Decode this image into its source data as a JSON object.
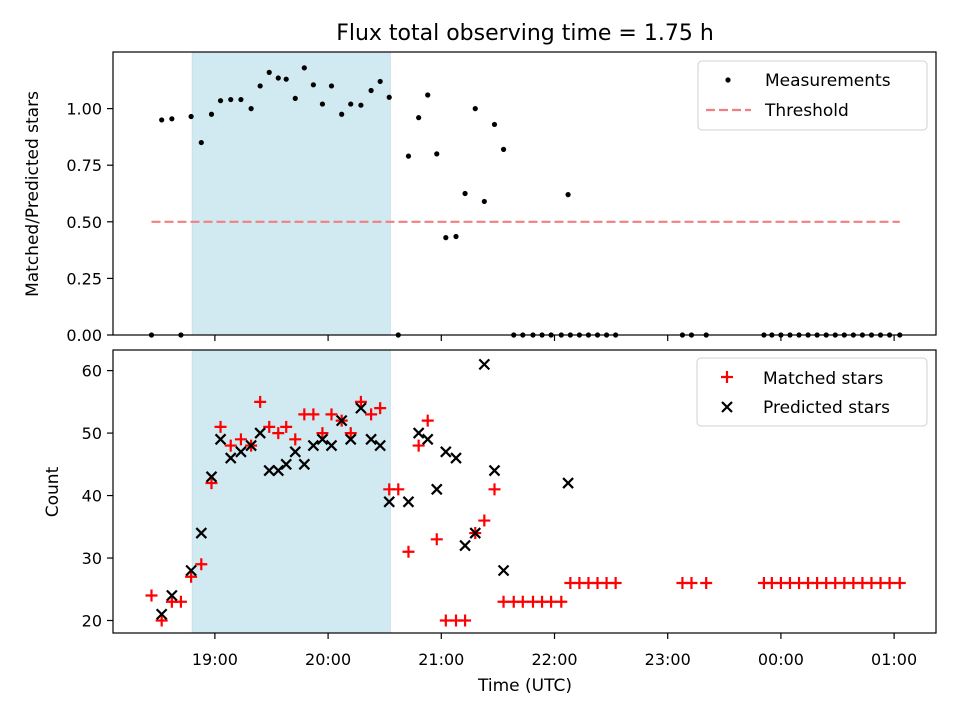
{
  "chart_data": {
    "title": "Flux total observing time = 1.75 h",
    "xlabel": "Time (UTC)",
    "x_unit": "hours since 18:00 UTC",
    "xlim": [
      0.1,
      7.37
    ],
    "xticks": [
      {
        "h": 1,
        "label": "19:00"
      },
      {
        "h": 2,
        "label": "20:00"
      },
      {
        "h": 3,
        "label": "21:00"
      },
      {
        "h": 4,
        "label": "22:00"
      },
      {
        "h": 5,
        "label": "23:00"
      },
      {
        "h": 6,
        "label": "00:00"
      },
      {
        "h": 7,
        "label": "01:00"
      }
    ],
    "shaded_interval": [
      0.8,
      2.55
    ],
    "top": {
      "type": "scatter",
      "ylabel": "Matched/Predicted stars",
      "ylim": [
        0,
        1.25
      ],
      "yticks": [
        "0.00",
        "0.25",
        "0.50",
        "0.75",
        "1.00"
      ],
      "legend": [
        "Measurements",
        "Threshold"
      ],
      "threshold": {
        "y": 0.5,
        "x": [
          0.44,
          7.05
        ]
      },
      "measurements": [
        [
          0.44,
          0.0
        ],
        [
          0.53,
          0.95
        ],
        [
          0.62,
          0.955
        ],
        [
          0.7,
          0.0
        ],
        [
          0.79,
          0.965
        ],
        [
          0.88,
          0.85
        ],
        [
          0.97,
          0.975
        ],
        [
          1.05,
          1.035
        ],
        [
          1.14,
          1.04
        ],
        [
          1.23,
          1.04
        ],
        [
          1.32,
          1.0
        ],
        [
          1.4,
          1.1
        ],
        [
          1.48,
          1.16
        ],
        [
          1.56,
          1.135
        ],
        [
          1.63,
          1.13
        ],
        [
          1.71,
          1.045
        ],
        [
          1.79,
          1.18
        ],
        [
          1.87,
          1.105
        ],
        [
          1.95,
          1.02
        ],
        [
          2.03,
          1.1
        ],
        [
          2.12,
          0.975
        ],
        [
          2.2,
          1.02
        ],
        [
          2.29,
          1.015
        ],
        [
          2.38,
          1.08
        ],
        [
          2.46,
          1.12
        ],
        [
          2.54,
          1.05
        ],
        [
          2.62,
          0.0
        ],
        [
          2.71,
          0.79
        ],
        [
          2.8,
          0.96
        ],
        [
          2.88,
          1.06
        ],
        [
          2.96,
          0.8
        ],
        [
          3.04,
          0.43
        ],
        [
          3.13,
          0.435
        ],
        [
          3.21,
          0.625
        ],
        [
          3.3,
          1.0
        ],
        [
          3.38,
          0.59
        ],
        [
          3.47,
          0.93
        ],
        [
          3.55,
          0.82
        ],
        [
          3.64,
          0.0
        ],
        [
          3.72,
          0.0
        ],
        [
          3.81,
          0.0
        ],
        [
          3.89,
          0.0
        ],
        [
          3.97,
          0.0
        ],
        [
          4.06,
          0.0
        ],
        [
          4.12,
          0.62
        ],
        [
          4.14,
          0.0
        ],
        [
          4.22,
          0.0
        ],
        [
          4.3,
          0.0
        ],
        [
          4.38,
          0.0
        ],
        [
          4.46,
          0.0
        ],
        [
          4.54,
          0.0
        ],
        [
          5.13,
          0.0
        ],
        [
          5.21,
          0.0
        ],
        [
          5.34,
          0.0
        ],
        [
          5.85,
          0.0
        ],
        [
          5.92,
          0.0
        ],
        [
          6.0,
          0.0
        ],
        [
          6.08,
          0.0
        ],
        [
          6.16,
          0.0
        ],
        [
          6.24,
          0.0
        ],
        [
          6.32,
          0.0
        ],
        [
          6.4,
          0.0
        ],
        [
          6.48,
          0.0
        ],
        [
          6.56,
          0.0
        ],
        [
          6.64,
          0.0
        ],
        [
          6.72,
          0.0
        ],
        [
          6.8,
          0.0
        ],
        [
          6.88,
          0.0
        ],
        [
          6.96,
          0.0
        ],
        [
          7.05,
          0.0
        ]
      ]
    },
    "bottom": {
      "type": "scatter",
      "ylabel": "Count",
      "ylim": [
        18,
        63.3
      ],
      "yticks": [
        20,
        30,
        40,
        50,
        60
      ],
      "legend": [
        "Matched stars",
        "Predicted stars"
      ],
      "matched": [
        [
          0.44,
          24
        ],
        [
          0.53,
          20
        ],
        [
          0.62,
          23
        ],
        [
          0.7,
          23
        ],
        [
          0.79,
          27
        ],
        [
          0.88,
          29
        ],
        [
          0.97,
          42
        ],
        [
          1.05,
          51
        ],
        [
          1.14,
          48
        ],
        [
          1.23,
          49
        ],
        [
          1.32,
          48
        ],
        [
          1.4,
          55
        ],
        [
          1.48,
          51
        ],
        [
          1.56,
          50
        ],
        [
          1.63,
          51
        ],
        [
          1.71,
          49
        ],
        [
          1.79,
          53
        ],
        [
          1.87,
          53
        ],
        [
          1.95,
          50
        ],
        [
          2.03,
          53
        ],
        [
          2.12,
          52
        ],
        [
          2.2,
          50
        ],
        [
          2.29,
          55
        ],
        [
          2.38,
          53
        ],
        [
          2.46,
          54
        ],
        [
          2.54,
          41
        ],
        [
          2.62,
          41
        ],
        [
          2.71,
          31
        ],
        [
          2.8,
          48
        ],
        [
          2.88,
          52
        ],
        [
          2.96,
          33
        ],
        [
          3.04,
          20
        ],
        [
          3.13,
          20
        ],
        [
          3.21,
          20
        ],
        [
          3.3,
          34
        ],
        [
          3.38,
          36
        ],
        [
          3.47,
          41
        ],
        [
          3.55,
          23
        ],
        [
          3.64,
          23
        ],
        [
          3.72,
          23
        ],
        [
          3.81,
          23
        ],
        [
          3.89,
          23
        ],
        [
          3.97,
          23
        ],
        [
          4.06,
          23
        ],
        [
          4.14,
          26
        ],
        [
          4.22,
          26
        ],
        [
          4.3,
          26
        ],
        [
          4.38,
          26
        ],
        [
          4.46,
          26
        ],
        [
          4.54,
          26
        ],
        [
          5.13,
          26
        ],
        [
          5.21,
          26
        ],
        [
          5.34,
          26
        ],
        [
          5.85,
          26
        ],
        [
          5.92,
          26
        ],
        [
          6.0,
          26
        ],
        [
          6.08,
          26
        ],
        [
          6.16,
          26
        ],
        [
          6.24,
          26
        ],
        [
          6.32,
          26
        ],
        [
          6.4,
          26
        ],
        [
          6.48,
          26
        ],
        [
          6.56,
          26
        ],
        [
          6.64,
          26
        ],
        [
          6.72,
          26
        ],
        [
          6.8,
          26
        ],
        [
          6.88,
          26
        ],
        [
          6.96,
          26
        ],
        [
          7.05,
          26
        ]
      ],
      "predicted": [
        [
          0.53,
          21
        ],
        [
          0.62,
          24
        ],
        [
          0.79,
          28
        ],
        [
          0.88,
          34
        ],
        [
          0.97,
          43
        ],
        [
          1.05,
          49
        ],
        [
          1.14,
          46
        ],
        [
          1.23,
          47
        ],
        [
          1.32,
          48
        ],
        [
          1.4,
          50
        ],
        [
          1.48,
          44
        ],
        [
          1.56,
          44
        ],
        [
          1.63,
          45
        ],
        [
          1.71,
          47
        ],
        [
          1.79,
          45
        ],
        [
          1.87,
          48
        ],
        [
          1.95,
          49
        ],
        [
          2.03,
          48
        ],
        [
          2.12,
          52
        ],
        [
          2.2,
          49
        ],
        [
          2.29,
          54
        ],
        [
          2.38,
          49
        ],
        [
          2.46,
          48
        ],
        [
          2.54,
          39
        ],
        [
          2.71,
          39
        ],
        [
          2.8,
          50
        ],
        [
          2.88,
          49
        ],
        [
          2.96,
          41
        ],
        [
          3.04,
          47
        ],
        [
          3.13,
          46
        ],
        [
          3.21,
          32
        ],
        [
          3.3,
          34
        ],
        [
          3.38,
          61
        ],
        [
          3.47,
          44
        ],
        [
          3.55,
          28
        ],
        [
          4.12,
          42
        ]
      ]
    }
  }
}
